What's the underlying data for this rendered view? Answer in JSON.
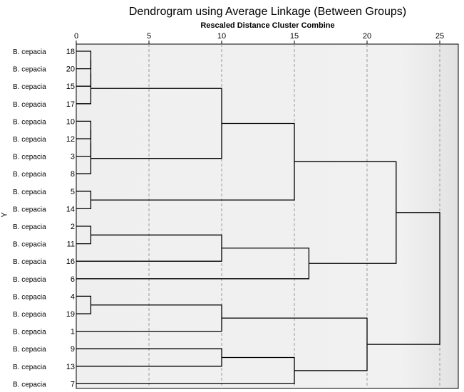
{
  "chart_data": {
    "type": "dendrogram",
    "title": "Dendrogram using Average Linkage (Between Groups)",
    "xlabel": "Rescaled Distance Cluster Combine",
    "ylabel": "Y",
    "xlim": [
      0,
      25
    ],
    "x_ticks": [
      0,
      5,
      10,
      15,
      20,
      25
    ],
    "grid": "dashed vertical at ticks",
    "rows": [
      {
        "label": "B. cepacia",
        "case": "18"
      },
      {
        "label": "B. cepacia",
        "case": "20"
      },
      {
        "label": "B. cepacia",
        "case": "15"
      },
      {
        "label": "B. cepacia",
        "case": "17"
      },
      {
        "label": "B. cepacia",
        "case": "10"
      },
      {
        "label": "B. cepacia",
        "case": "12"
      },
      {
        "label": "B. cepacia",
        "case": "3"
      },
      {
        "label": "B. cepacia",
        "case": "8"
      },
      {
        "label": "B. cepacia",
        "case": "5"
      },
      {
        "label": "B. cepacia",
        "case": "14"
      },
      {
        "label": "B. cepacia",
        "case": "2"
      },
      {
        "label": "B. cepacia",
        "case": "11"
      },
      {
        "label": "B. cepacia",
        "case": "16"
      },
      {
        "label": "B. cepacia",
        "case": "6"
      },
      {
        "label": "B. cepacia",
        "case": "4"
      },
      {
        "label": "B. cepacia",
        "case": "19"
      },
      {
        "label": "B. cepacia",
        "case": "1"
      },
      {
        "label": "B. cepacia",
        "case": "9"
      },
      {
        "label": "B. cepacia",
        "case": "13"
      },
      {
        "label": "B. cepacia",
        "case": "7"
      }
    ],
    "merges": [
      {
        "id": "A",
        "left": 0,
        "right": 1,
        "distance": 1
      },
      {
        "id": "B",
        "left": "A",
        "right": 2,
        "distance": 1
      },
      {
        "id": "C",
        "left": "B",
        "right": 3,
        "distance": 1
      },
      {
        "id": "D",
        "left": 4,
        "right": 5,
        "distance": 1
      },
      {
        "id": "E",
        "left": "D",
        "right": 6,
        "distance": 1
      },
      {
        "id": "F",
        "left": "E",
        "right": 7,
        "distance": 1
      },
      {
        "id": "G",
        "left": 8,
        "right": 9,
        "distance": 1
      },
      {
        "id": "H",
        "left": 10,
        "right": 11,
        "distance": 1
      },
      {
        "id": "I",
        "left": 14,
        "right": 15,
        "distance": 1
      },
      {
        "id": "J",
        "left": "C",
        "right": "F",
        "distance": 10
      },
      {
        "id": "K",
        "left": "H",
        "right": 12,
        "distance": 10
      },
      {
        "id": "L",
        "left": "I",
        "right": 16,
        "distance": 10
      },
      {
        "id": "M",
        "left": 17,
        "right": 18,
        "distance": 10
      },
      {
        "id": "N",
        "left": "J",
        "right": "G",
        "distance": 15
      },
      {
        "id": "O",
        "left": "M",
        "right": 19,
        "distance": 15
      },
      {
        "id": "P",
        "left": "K",
        "right": 13,
        "distance": 16
      },
      {
        "id": "Q",
        "left": "L",
        "right": "O",
        "distance": 20
      },
      {
        "id": "R",
        "left": "N",
        "right": "P",
        "distance": 22
      },
      {
        "id": "S",
        "left": "R",
        "right": "Q",
        "distance": 25
      }
    ]
  }
}
